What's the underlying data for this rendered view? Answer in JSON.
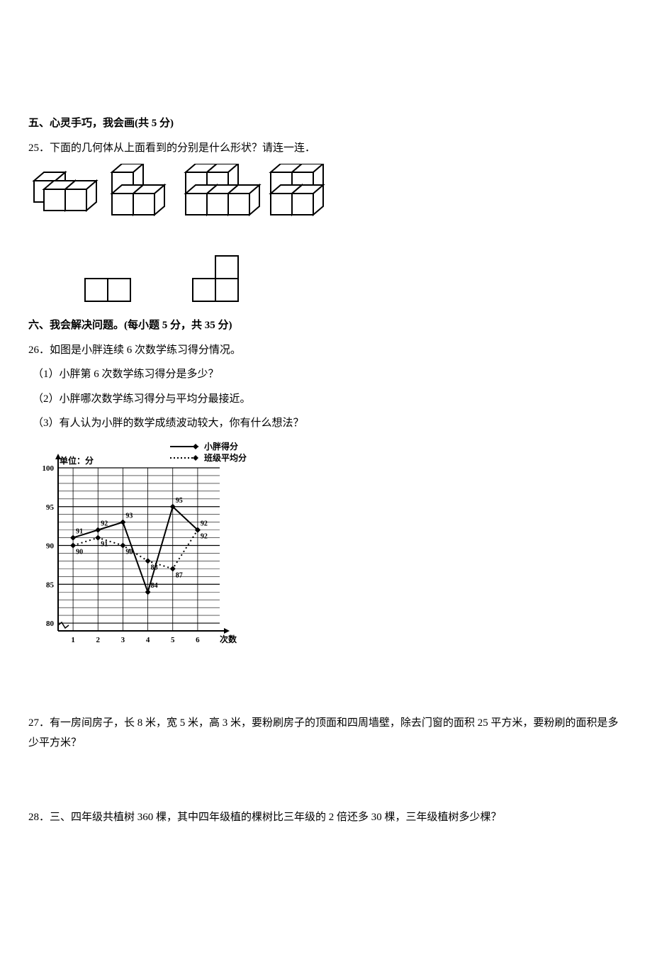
{
  "section5": {
    "heading": "五、心灵手巧，我会画(共 5 分)",
    "q25": "25．下面的几何体从上面看到的分别是什么形状？请连一连．"
  },
  "section6": {
    "heading": "六、我会解决问题。(每小题 5 分，共 35 分)",
    "q26": {
      "stem": "26．如图是小胖连续 6 次数学练习得分情况。",
      "p1": "（1）小胖第 6 次数学练习得分是多少？",
      "p2": "（2）小胖哪次数学练习得分与平均分最接近。",
      "p3": "（3）有人认为小胖的数学成绩波动较大，你有什么想法？"
    },
    "q27": "27．有一房间房子，长 8 米，宽 5 米，高 3 米，要粉刷房子的顶面和四周墙壁，除去门窗的面积 25 平方米，要粉刷的面积是多少平方米？",
    "q28": "28．三、四年级共植树 360 棵，其中四年级植的棵树比三年级的 2 倍还多 30 棵，三年级植树多少棵？"
  },
  "chart": {
    "legend": {
      "series1": "小胖得分",
      "series2": "班级平均分"
    },
    "yAxisLabel": "单位：分",
    "xAxisLabel": "次数",
    "yTicks": [
      80,
      85,
      90,
      95,
      100
    ],
    "xTicks": [
      1,
      2,
      3,
      4,
      5,
      6
    ],
    "ylim": [
      79,
      100
    ],
    "series1": {
      "name": "小胖得分",
      "data": [
        91,
        92,
        93,
        84,
        95,
        92
      ],
      "labels": [
        "91",
        "92",
        "93",
        "84",
        "95",
        "92"
      ],
      "color": "#000000",
      "line": "solid",
      "marker": "diamond"
    },
    "series2": {
      "name": "班级平均分",
      "data": [
        90,
        91,
        90,
        88,
        87,
        92
      ],
      "labels": [
        "90",
        "91",
        "90",
        "88",
        "87",
        "92"
      ],
      "color": "#000000",
      "line": "dotted",
      "marker": "diamond"
    },
    "grid_color": "#000000",
    "background": "#ffffff",
    "label_fontsize": 10,
    "tick_fontsize": 11
  },
  "cubes": {
    "stroke": "#000000",
    "fill": "#ffffff"
  },
  "flat": {
    "stroke": "#000000",
    "fill": "#ffffff",
    "cell": 30
  }
}
